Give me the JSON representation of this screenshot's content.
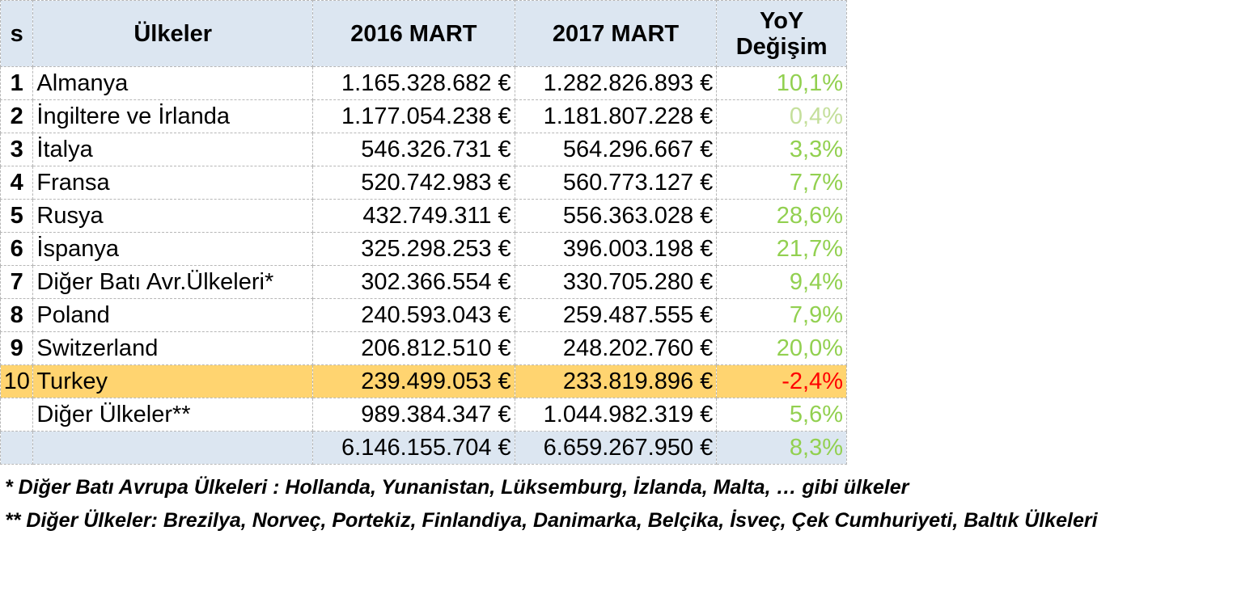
{
  "header": {
    "rank": "s",
    "country": "Ülkeler",
    "y2016": "2016 MART",
    "y2017": "2017 MART",
    "yoy_line1": "YoY",
    "yoy_line2": "Değişim"
  },
  "rows": [
    {
      "rank": "1",
      "country": "Almanya",
      "v2016": "1.165.328.682 €",
      "v2017": "1.282.826.893 €",
      "yoy": "10,1%"
    },
    {
      "rank": "2",
      "country": "İngiltere ve İrlanda",
      "v2016": "1.177.054.238 €",
      "v2017": "1.181.807.228 €",
      "yoy": "0,4%"
    },
    {
      "rank": "3",
      "country": "İtalya",
      "v2016": "546.326.731 €",
      "v2017": "564.296.667 €",
      "yoy": "3,3%"
    },
    {
      "rank": "4",
      "country": "Fransa",
      "v2016": "520.742.983 €",
      "v2017": "560.773.127 €",
      "yoy": "7,7%"
    },
    {
      "rank": "5",
      "country": "Rusya",
      "v2016": "432.749.311 €",
      "v2017": "556.363.028 €",
      "yoy": "28,6%"
    },
    {
      "rank": "6",
      "country": "İspanya",
      "v2016": "325.298.253 €",
      "v2017": "396.003.198 €",
      "yoy": "21,7%"
    },
    {
      "rank": "7",
      "country": "Diğer Batı Avr.Ülkeleri*",
      "v2016": "302.366.554 €",
      "v2017": "330.705.280 €",
      "yoy": "9,4%"
    },
    {
      "rank": "8",
      "country": "Poland",
      "v2016": "240.593.043 €",
      "v2017": "259.487.555 €",
      "yoy": "7,9%"
    },
    {
      "rank": "9",
      "country": "Switzerland",
      "v2016": "206.812.510 €",
      "v2017": "248.202.760 €",
      "yoy": "20,0%"
    },
    {
      "rank": "10",
      "country": "Turkey",
      "v2016": "239.499.053 €",
      "v2017": "233.819.896 €",
      "yoy": "-2,4%"
    },
    {
      "rank": "",
      "country": "Diğer Ülkeler**",
      "v2016": "989.384.347 €",
      "v2017": "1.044.982.319 €",
      "yoy": "5,6%"
    }
  ],
  "total": {
    "v2016": "6.146.155.704 €",
    "v2017": "6.659.267.950 €",
    "yoy": "8,3%"
  },
  "footnotes": {
    "note1": "* Diğer Batı Avrupa Ülkeleri : Hollanda, Yunanistan, Lüksemburg, İzlanda, Malta, … gibi ülkeler",
    "note2": "** Diğer Ülkeler: Brezilya, Norveç, Portekiz, Finlandiya, Danimarka, Belçika, İsveç, Çek Cumhuriyeti, Baltık Ülkeleri"
  },
  "colors": {
    "header_bg": "#dce6f1",
    "highlight_bg": "#ffd470",
    "positive_text": "#92d050",
    "negative_text": "#ff0000"
  }
}
